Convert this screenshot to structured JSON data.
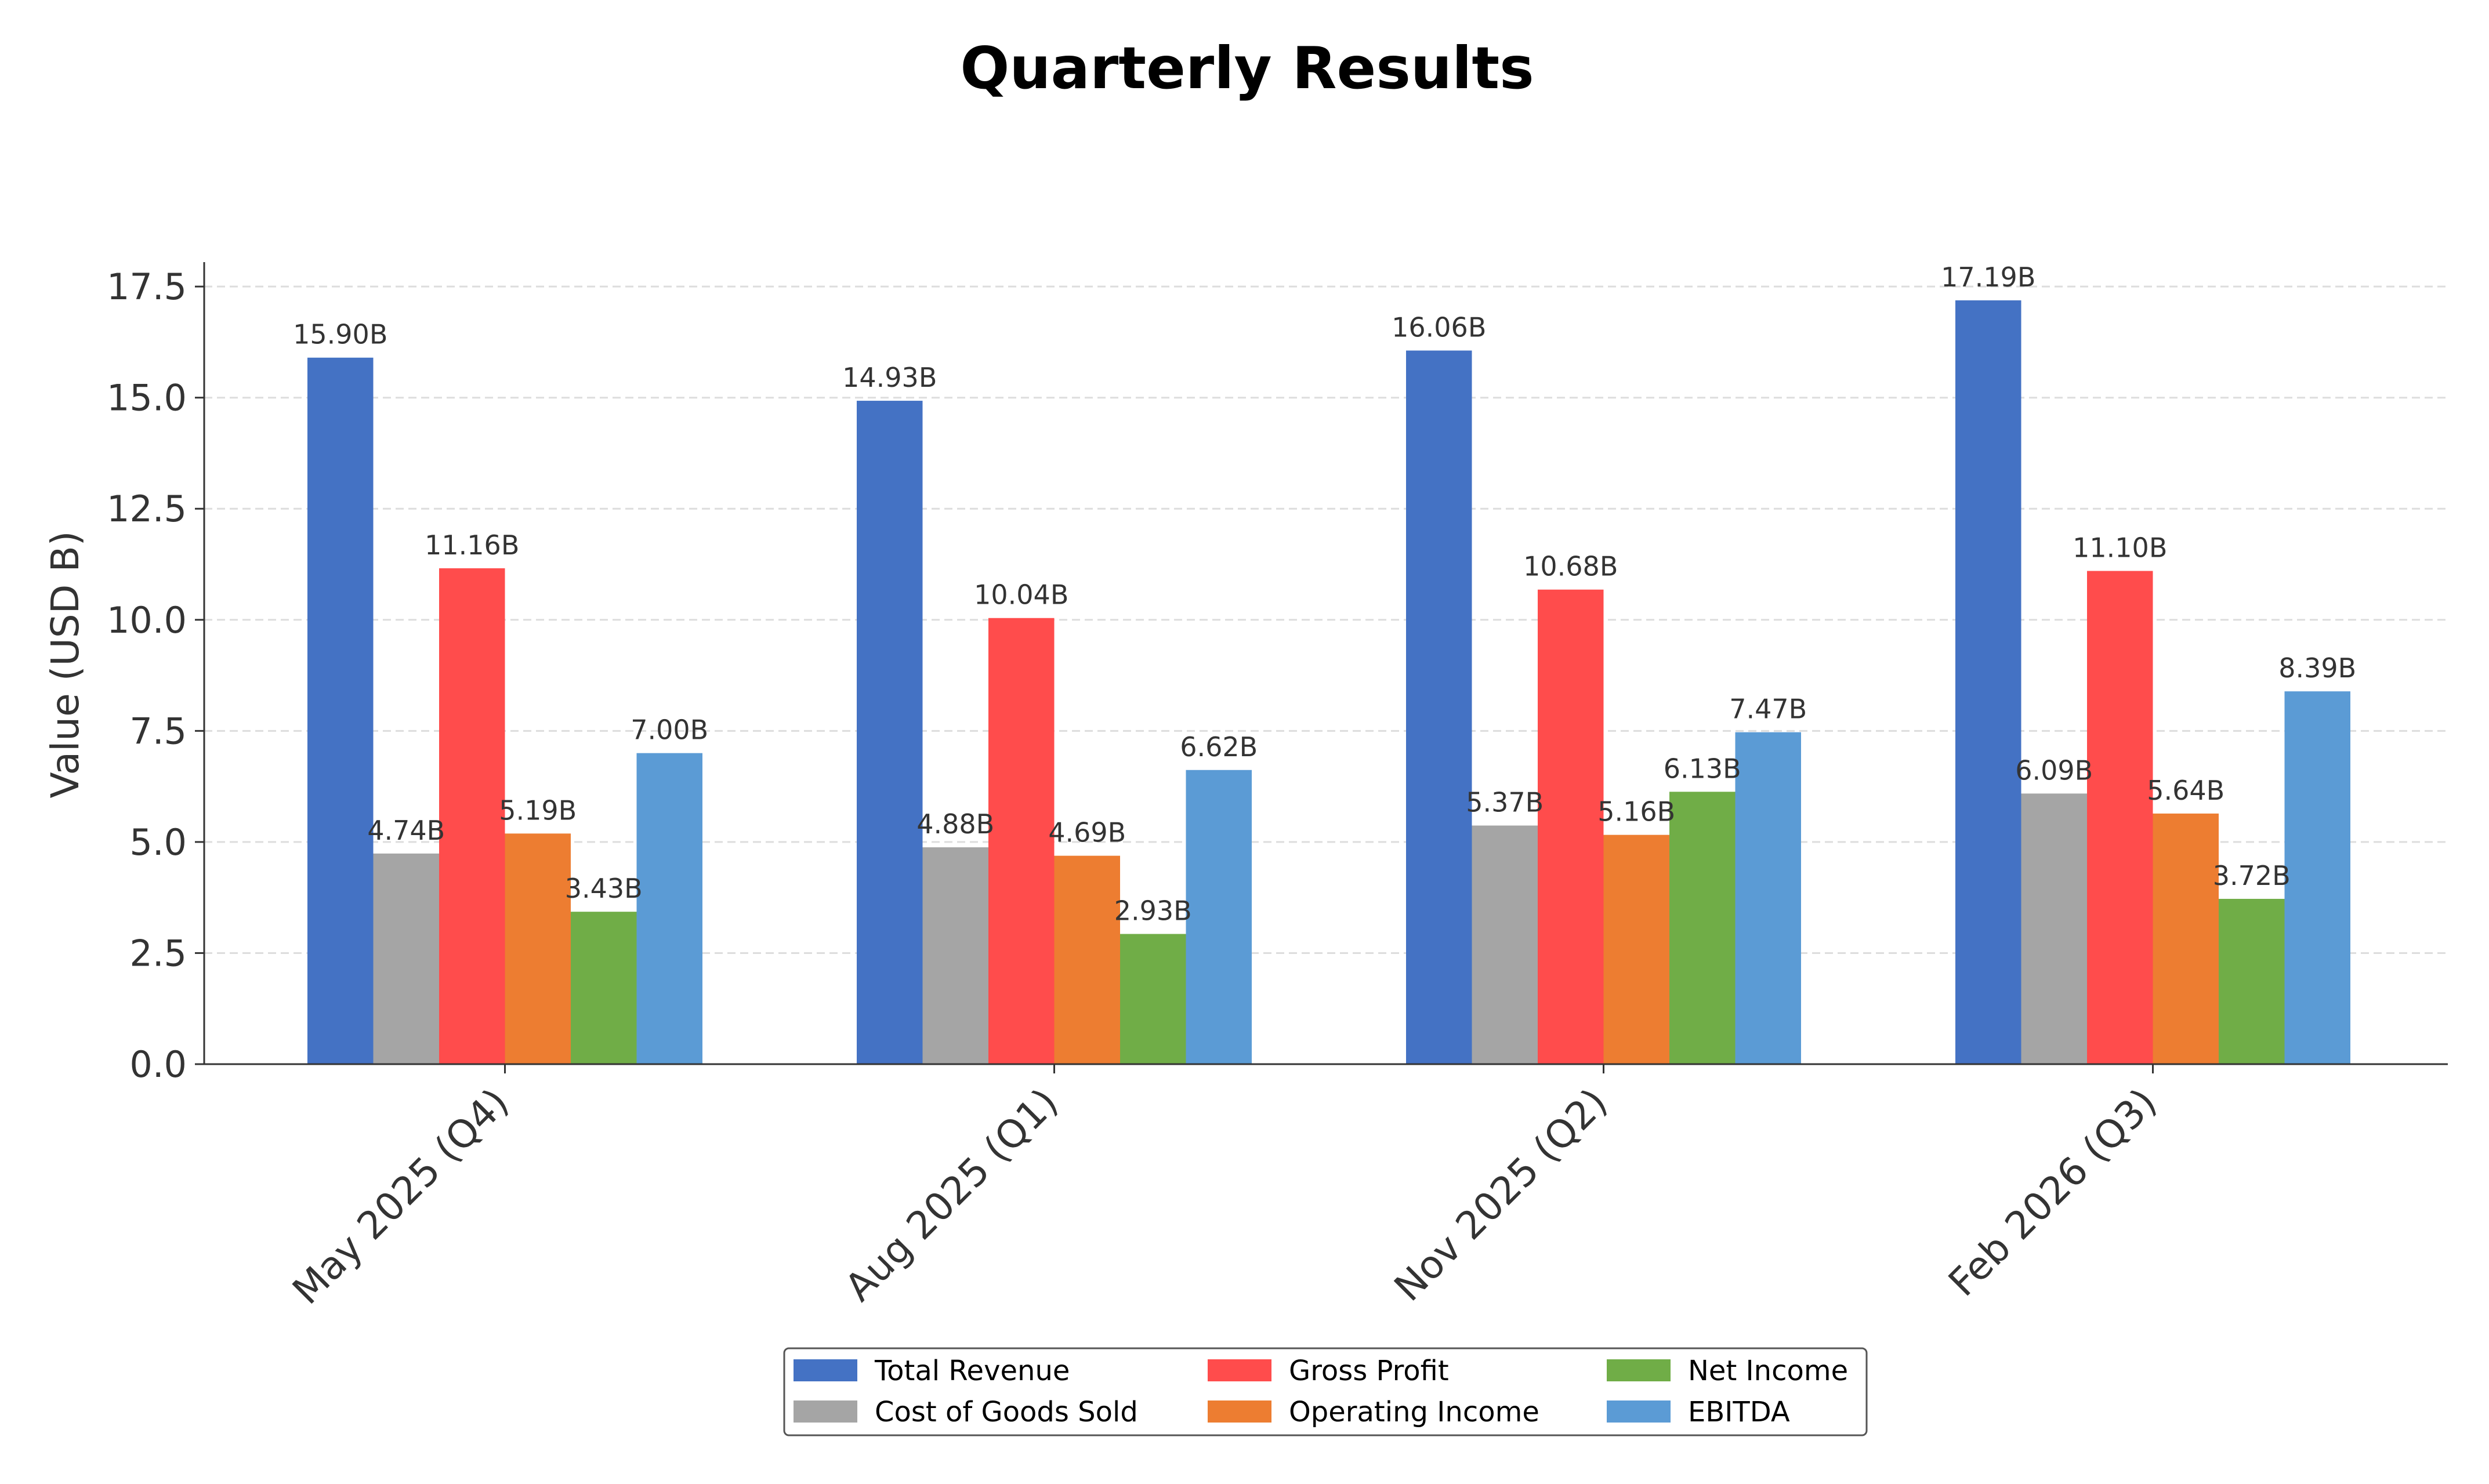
{
  "chart_data": {
    "type": "bar",
    "title": "Quarterly Results",
    "xlabel": "",
    "ylabel": "Value (USD B)",
    "categories": [
      "May 2025 (Q4)",
      "Aug 2025 (Q1)",
      "Nov 2025 (Q2)",
      "Feb 2026 (Q3)"
    ],
    "ylim": [
      0,
      18.05
    ],
    "yticks": [
      "0.0",
      "2.5",
      "5.0",
      "7.5",
      "10.0",
      "12.5",
      "15.0",
      "17.5"
    ],
    "grid": "horizontal dashed",
    "legend_position": "bottom-center",
    "series": [
      {
        "name": "Total Revenue",
        "color": "#4472C4",
        "values": [
          15.9,
          14.93,
          16.06,
          17.19
        ],
        "labels": [
          "15.90B",
          "14.93B",
          "16.06B",
          "17.19B"
        ]
      },
      {
        "name": "Cost of Goods Sold",
        "color": "#A5A5A5",
        "values": [
          4.74,
          4.88,
          5.37,
          6.09
        ],
        "labels": [
          "4.74B",
          "4.88B",
          "5.37B",
          "6.09B"
        ]
      },
      {
        "name": "Gross Profit",
        "color": "#FF4C4C",
        "values": [
          11.16,
          10.04,
          10.68,
          11.1
        ],
        "labels": [
          "11.16B",
          "10.04B",
          "10.68B",
          "11.10B"
        ]
      },
      {
        "name": "Operating Income",
        "color": "#ED7D31",
        "values": [
          5.19,
          4.69,
          5.16,
          5.64
        ],
        "labels": [
          "5.19B",
          "4.69B",
          "5.16B",
          "5.64B"
        ]
      },
      {
        "name": "Net Income",
        "color": "#70AD47",
        "values": [
          3.43,
          2.93,
          6.13,
          3.72
        ],
        "labels": [
          "3.43B",
          "2.93B",
          "6.13B",
          "3.72B"
        ]
      },
      {
        "name": "EBITDA",
        "color": "#5B9BD5",
        "values": [
          7.0,
          6.62,
          7.47,
          8.39
        ],
        "labels": [
          "7.00B",
          "6.62B",
          "7.47B",
          "8.39B"
        ]
      }
    ]
  }
}
